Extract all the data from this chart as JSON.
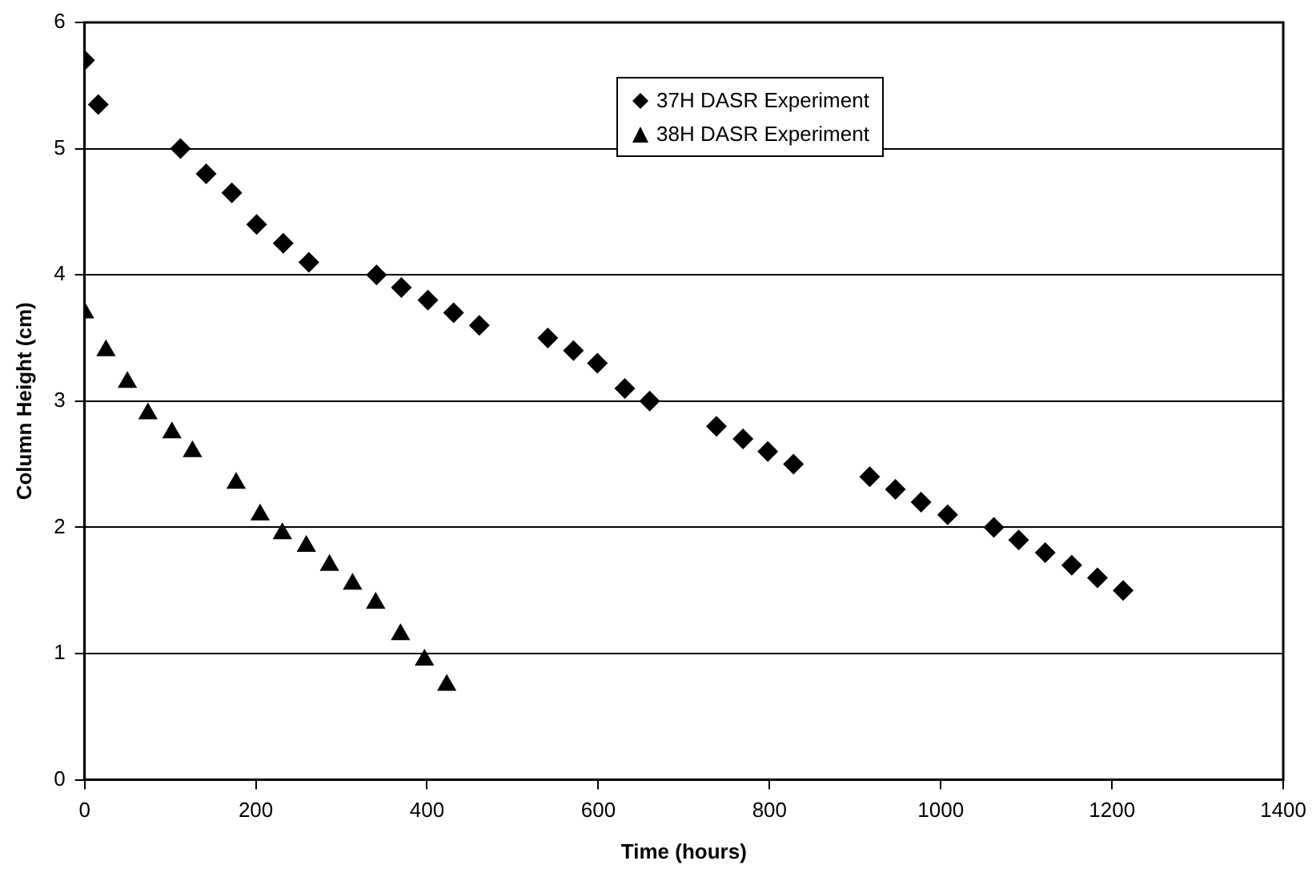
{
  "chart_data": {
    "type": "scatter",
    "xlabel": "Time (hours)",
    "ylabel": "Column Height (cm)",
    "xlim": [
      0,
      1400
    ],
    "xticks": [
      0,
      200,
      400,
      600,
      800,
      1000,
      1200,
      1400
    ],
    "ylim": [
      0,
      6
    ],
    "yticks": [
      0,
      1,
      2,
      3,
      4,
      5,
      6
    ],
    "grid": "y",
    "legend": "top right",
    "series": [
      {
        "name": "37H DASR Experiment",
        "color": "#000000",
        "marker": "diamond",
        "x": [
          0,
          16,
          112,
          142,
          172,
          201,
          232,
          262,
          341,
          370,
          401,
          431,
          461,
          541,
          571,
          599,
          631,
          660,
          738,
          769,
          798,
          828,
          917,
          947,
          977,
          1008,
          1062,
          1091,
          1122,
          1153,
          1183,
          1213
        ],
        "values": [
          5.7,
          5.35,
          5.0,
          4.8,
          4.65,
          4.4,
          4.25,
          4.1,
          4.0,
          3.9,
          3.8,
          3.7,
          3.6,
          3.5,
          3.4,
          3.3,
          3.1,
          3.0,
          2.8,
          2.7,
          2.6,
          2.5,
          2.4,
          2.3,
          2.2,
          2.1,
          2.0,
          1.9,
          1.8,
          1.7,
          1.6,
          1.5
        ]
      },
      {
        "name": "38H DASR Experiment",
        "color": "#000000",
        "marker": "triangle",
        "x": [
          0,
          25,
          50,
          74,
          102,
          126,
          177,
          205,
          231,
          259,
          286,
          313,
          340,
          369,
          397,
          423
        ],
        "values": [
          3.7,
          3.4,
          3.15,
          2.9,
          2.75,
          2.6,
          2.35,
          2.1,
          1.95,
          1.85,
          1.7,
          1.55,
          1.4,
          1.15,
          0.95,
          0.75
        ]
      }
    ]
  }
}
